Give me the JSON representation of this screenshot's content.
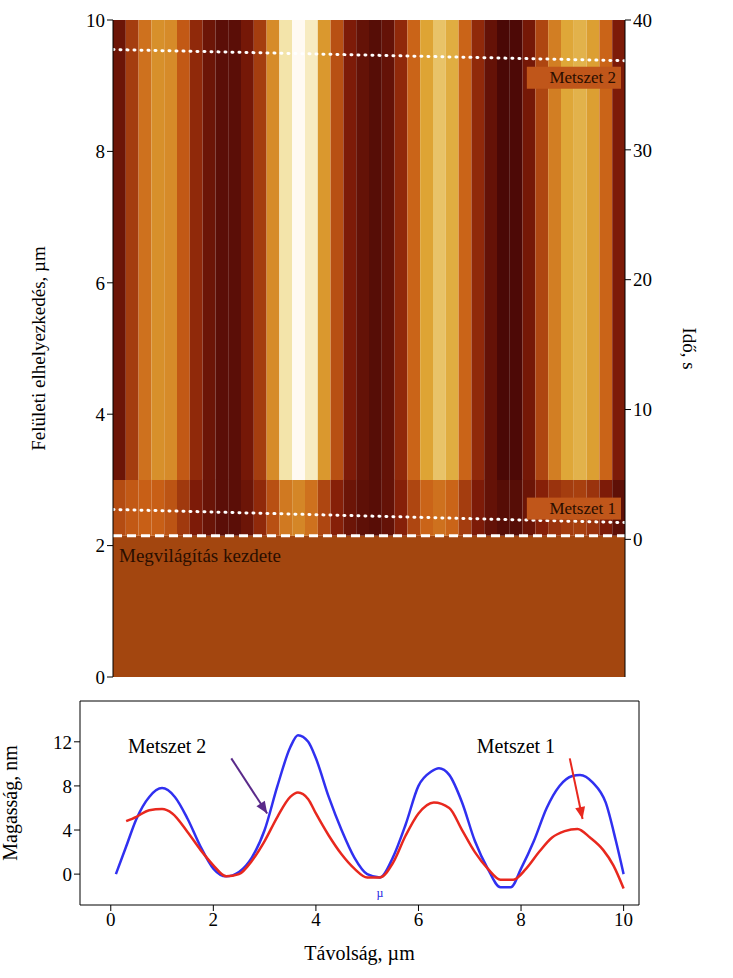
{
  "chart_data": [
    {
      "type": "heatmap",
      "ylabel": "Felületi elhelyezkedés, µm",
      "y2label": "Idő, s",
      "xlim": [
        0,
        10
      ],
      "ylim": [
        0,
        10
      ],
      "yticks": [
        0,
        2,
        4,
        6,
        8,
        10
      ],
      "y2lim": [
        -10.6,
        40
      ],
      "y2ticks": [
        0,
        10,
        20,
        30,
        40
      ],
      "tick_labels": "y",
      "x_edges": [
        0,
        0.25,
        0.5,
        0.75,
        1,
        1.25,
        1.5,
        1.75,
        2,
        2.25,
        2.5,
        2.75,
        3,
        3.25,
        3.5,
        3.75,
        4,
        4.25,
        4.5,
        4.75,
        5,
        5.25,
        5.5,
        5.75,
        6,
        6.25,
        6.5,
        6.75,
        7,
        7.25,
        7.5,
        7.75,
        8,
        8.25,
        8.5,
        8.75,
        9,
        9.25,
        9.5,
        9.75,
        10
      ],
      "y_edges": [
        2.15,
        3.0,
        10
      ],
      "cells": [
        [
          4.8,
          5.5,
          5.8,
          5.8,
          5.2,
          3.8,
          2,
          0.8,
          0,
          0,
          1,
          3,
          5,
          6.8,
          7.3,
          6.5,
          4.5,
          2.5,
          1,
          0.2,
          -0.2,
          0.5,
          2.5,
          4.5,
          6,
          6.5,
          6,
          4,
          2,
          0.5,
          -0.3,
          -0.3,
          1,
          2.5,
          3.5,
          4,
          4.2,
          3.5,
          2,
          0.2
        ],
        [
          1,
          4,
          6.5,
          7.7,
          7.5,
          5.5,
          3,
          1,
          0,
          0,
          1.5,
          4,
          7.5,
          11,
          12.6,
          11.5,
          8,
          5,
          2,
          0.5,
          -0.3,
          0.5,
          3,
          6,
          8.5,
          9.6,
          8.8,
          6,
          3,
          0.5,
          -1,
          -0.8,
          1.5,
          4.5,
          7,
          8.6,
          9,
          8.3,
          6,
          2
        ]
      ],
      "illumination": {
        "y": 2.15,
        "label": "Megvilágítás kezdete"
      },
      "cuts": [
        {
          "name": "Metszet 1",
          "y": [
            2.55,
            2.35
          ]
        },
        {
          "name": "Metszet 2",
          "y": [
            9.55,
            9.38
          ]
        }
      ]
    },
    {
      "type": "line",
      "xlabel": "Távolság, µm",
      "ylabel": "Magasság, nm",
      "xlim": [
        -0.6,
        10.3
      ],
      "xticks": [
        0,
        2,
        4,
        6,
        8,
        10
      ],
      "ylim": [
        -2.8,
        15.7
      ],
      "yticks": [
        0,
        4,
        8,
        12
      ],
      "series": [
        {
          "name": "Metszet 2",
          "color": "#3030f0",
          "x": [
            0.1,
            0.3,
            0.5,
            0.75,
            1.0,
            1.25,
            1.5,
            1.75,
            2.0,
            2.25,
            2.5,
            2.75,
            3.0,
            3.25,
            3.5,
            3.65,
            3.85,
            4.0,
            4.25,
            4.5,
            4.75,
            5.0,
            5.25,
            5.5,
            5.75,
            6.0,
            6.25,
            6.4,
            6.6,
            6.85,
            7.1,
            7.35,
            7.6,
            7.8,
            8.0,
            8.25,
            8.5,
            8.75,
            9.0,
            9.15,
            9.4,
            9.65,
            9.85,
            10.0
          ],
          "values": [
            0,
            2.5,
            5,
            7,
            7.8,
            7,
            5,
            2.5,
            0.5,
            -0.2,
            0.2,
            1.5,
            4,
            8,
            11.5,
            12.6,
            12,
            10.5,
            7,
            4,
            1.5,
            0,
            -0.3,
            1.5,
            4.5,
            8,
            9.3,
            9.6,
            9,
            6.5,
            3,
            0.5,
            -1.2,
            -1.2,
            0.5,
            3,
            6,
            8,
            8.9,
            9,
            8.3,
            6.5,
            3,
            0
          ]
        },
        {
          "name": "Metszet 1",
          "color": "#e8281e",
          "x": [
            0.3,
            0.5,
            0.75,
            1.0,
            1.2,
            1.5,
            1.75,
            2.0,
            2.25,
            2.5,
            2.75,
            3.0,
            3.25,
            3.5,
            3.65,
            3.85,
            4.0,
            4.25,
            4.5,
            4.75,
            5.0,
            5.25,
            5.5,
            5.75,
            6.0,
            6.3,
            6.6,
            6.85,
            7.1,
            7.35,
            7.6,
            7.85,
            8.1,
            8.35,
            8.6,
            8.85,
            9.1,
            9.35,
            9.6,
            9.8,
            10.0
          ],
          "values": [
            4.8,
            5.2,
            5.8,
            5.9,
            5.5,
            3.8,
            2.2,
            0.8,
            -0.2,
            0,
            1.2,
            3,
            5.2,
            7,
            7.4,
            6.8,
            5.5,
            3.5,
            1.8,
            0.5,
            -0.3,
            -0.3,
            1,
            3.5,
            5.5,
            6.5,
            6,
            4,
            2,
            0.5,
            -0.5,
            -0.5,
            0.5,
            2,
            3.3,
            3.9,
            4.1,
            3.3,
            2.2,
            0.8,
            -1.3
          ]
        }
      ],
      "annotations": [
        {
          "text": "Metszet 2",
          "x": 1.1,
          "y": 11.6,
          "arrow_from": [
            2.35,
            10.5
          ],
          "arrow_to": [
            3.05,
            5.5
          ],
          "color": "#5a2a8a"
        },
        {
          "text": "Metszet 1",
          "x": 7.9,
          "y": 11.6,
          "arrow_from": [
            8.95,
            10.5
          ],
          "arrow_to": [
            9.2,
            5.0
          ],
          "color": "#e8281e"
        },
        {
          "text": "µ",
          "x": 5.25,
          "y": -1.7,
          "color": "#2020e0"
        }
      ]
    }
  ]
}
